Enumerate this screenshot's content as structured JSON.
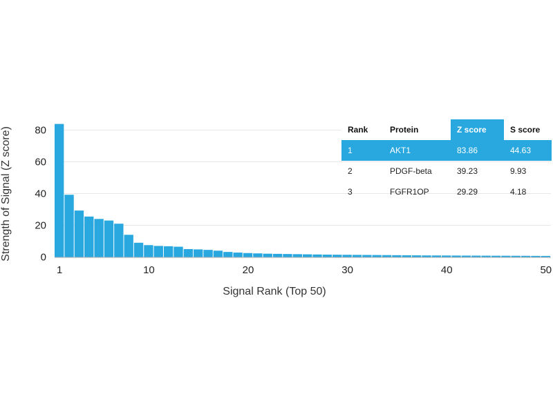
{
  "chart_data": {
    "type": "bar",
    "xlabel": "Signal Rank (Top 50)",
    "ylabel": "Strength of Signal (Z score)",
    "x_ticks": [
      "1",
      "10",
      "20",
      "30",
      "40",
      "50"
    ],
    "y_ticks": [
      "0",
      "20",
      "40",
      "60",
      "80"
    ],
    "ylim": [
      0,
      85
    ],
    "xlim": [
      1,
      50
    ],
    "bar_color": "#29a8e0",
    "grid": true,
    "values": [
      83.86,
      39.23,
      29.29,
      25.5,
      24.0,
      23.0,
      21.0,
      14.0,
      9.0,
      7.5,
      7.0,
      6.8,
      6.5,
      5.0,
      4.8,
      4.5,
      4.0,
      3.2,
      2.8,
      2.5,
      2.3,
      2.1,
      2.0,
      1.9,
      1.8,
      1.7,
      1.6,
      1.5,
      1.45,
      1.4,
      1.35,
      1.3,
      1.25,
      1.2,
      1.15,
      1.1,
      1.05,
      1.0,
      0.98,
      0.95,
      0.92,
      0.9,
      0.88,
      0.85,
      0.82,
      0.8,
      0.78,
      0.75,
      0.72,
      0.7
    ]
  },
  "table": {
    "headers": [
      "Rank",
      "Protein",
      "Z score",
      "S score"
    ],
    "highlight_color": "#29a8e0",
    "rows": [
      {
        "rank": "1",
        "protein": "AKT1",
        "z": "83.86",
        "s": "44.63"
      },
      {
        "rank": "2",
        "protein": "PDGF-beta",
        "z": "39.23",
        "s": "9.93"
      },
      {
        "rank": "3",
        "protein": "FGFR1OP",
        "z": "29.29",
        "s": "4.18"
      }
    ]
  }
}
